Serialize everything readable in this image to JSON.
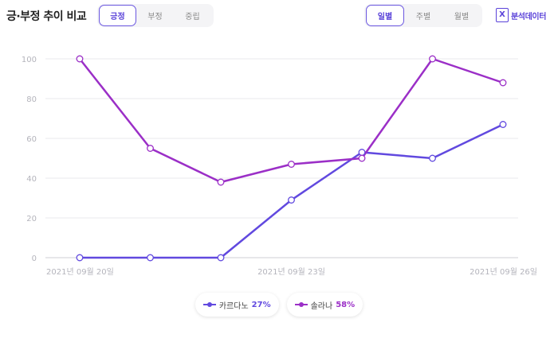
{
  "header": {
    "title": "긍·부정 추이 비교",
    "sentiment_tabs": [
      "긍정",
      "부정",
      "중립"
    ],
    "active_sentiment": "긍정",
    "period_tabs": [
      "일별",
      "주별",
      "월별"
    ],
    "active_period": "일별",
    "export_label": "분석데이터",
    "export_icon": "excel-icon"
  },
  "colors": {
    "accent": "#5b43d9",
    "series_1": "#6149df",
    "series_2": "#9b2fc7"
  },
  "chart_data": {
    "type": "line",
    "x": [
      "2021-09-20",
      "2021-09-21",
      "2021-09-22",
      "2021-09-23",
      "2021-09-24",
      "2021-09-25",
      "2021-09-26"
    ],
    "x_tick_labels": [
      "2021년 09월 20일",
      "2021년 09월 23일",
      "2021년 09월 26일"
    ],
    "y_ticks": [
      "0",
      "20",
      "40",
      "60",
      "80",
      "100"
    ],
    "ylim": [
      0,
      100
    ],
    "grid": true,
    "legend_position": "bottom",
    "series": [
      {
        "name": "카르다노",
        "percent": "27%",
        "values": [
          0,
          0,
          0,
          29,
          53,
          50,
          67
        ]
      },
      {
        "name": "솔라나",
        "percent": "58%",
        "values": [
          100,
          55,
          38,
          47,
          50,
          100,
          88
        ]
      }
    ]
  }
}
